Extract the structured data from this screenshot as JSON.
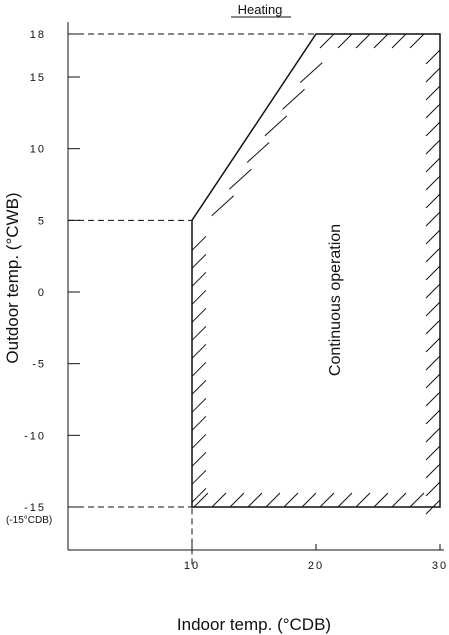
{
  "chart_data": {
    "type": "area",
    "title": "Heating",
    "xlabel": "Indoor temp. (°CDB)",
    "ylabel": "Outdoor temp. (°CWB)",
    "xlim": [
      0,
      30
    ],
    "ylim": [
      -19,
      19
    ],
    "x_ticks": [
      10,
      20,
      30
    ],
    "y_ticks": [
      18,
      15,
      10,
      5,
      0,
      -5,
      -10,
      -15
    ],
    "y_tick_note": "(-15°CDB)",
    "grid": false,
    "region": {
      "label": "Continuous operation",
      "boundary": [
        {
          "x": 10,
          "y": -15
        },
        {
          "x": 10,
          "y": 5
        },
        {
          "x": 20,
          "y": 18
        },
        {
          "x": 30,
          "y": 18
        },
        {
          "x": 30,
          "y": -15
        }
      ]
    },
    "reference_lines": [
      {
        "y": 18,
        "x_from": 0,
        "x_to": 20
      },
      {
        "y": 5,
        "x_from": 0,
        "x_to": 10
      },
      {
        "y": -15,
        "x_from": 0,
        "x_to": 10
      },
      {
        "x": 10,
        "y_from": -19,
        "y_to": -15
      }
    ]
  }
}
